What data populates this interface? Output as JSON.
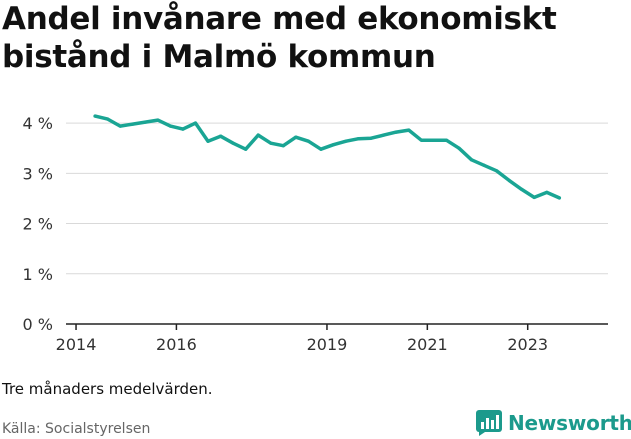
{
  "title": "Andel invånare med ekonomiskt bistånd i Malmö kommun",
  "note": "Tre månaders medelvärden.",
  "source": "Källa: Socialstyrelsen",
  "brand": "Newsworthy",
  "colors": {
    "line": "#1aa594",
    "grid": "#d9d9d9",
    "axis": "#222222",
    "brand": "#1c9a8c"
  },
  "chart_data": {
    "type": "line",
    "title": "Andel invånare med ekonomiskt bistånd i Malmö kommun",
    "xlabel": "",
    "ylabel": "",
    "xlim": [
      2013.8,
      2024.6
    ],
    "ylim": [
      0,
      4.4
    ],
    "grid": true,
    "y_ticks": [
      {
        "value": 0,
        "label": "0 %"
      },
      {
        "value": 1,
        "label": "1 %"
      },
      {
        "value": 2,
        "label": "2 %"
      },
      {
        "value": 3,
        "label": "3 %"
      },
      {
        "value": 4,
        "label": "4 %"
      }
    ],
    "x_ticks": [
      {
        "value": 2014,
        "label": "2014"
      },
      {
        "value": 2016,
        "label": "2016"
      },
      {
        "value": 2019,
        "label": "2019"
      },
      {
        "value": 2021,
        "label": "2021"
      },
      {
        "value": 2023,
        "label": "2023"
      }
    ],
    "series": [
      {
        "x": [
          2014.38,
          2014.63,
          2014.88,
          2015.13,
          2015.38,
          2015.63,
          2015.88,
          2016.13,
          2016.38,
          2016.63,
          2016.88,
          2017.13,
          2017.38,
          2017.63,
          2017.88,
          2018.13,
          2018.38,
          2018.63,
          2018.88,
          2019.13,
          2019.38,
          2019.63,
          2019.88,
          2020.13,
          2020.38,
          2020.63,
          2020.88,
          2021.13,
          2021.38,
          2021.63,
          2021.88,
          2022.13,
          2022.38,
          2022.63,
          2022.88,
          2023.13,
          2023.38,
          2023.63
        ],
        "values": [
          4.14,
          4.08,
          3.94,
          3.98,
          4.02,
          4.06,
          3.94,
          3.88,
          4.0,
          3.64,
          3.74,
          3.6,
          3.48,
          3.76,
          3.6,
          3.55,
          3.72,
          3.64,
          3.48,
          3.57,
          3.64,
          3.69,
          3.7,
          3.76,
          3.82,
          3.86,
          3.66,
          3.66,
          3.66,
          3.5,
          3.27,
          3.16,
          3.05,
          2.86,
          2.68,
          2.52,
          2.62,
          2.51
        ]
      }
    ]
  }
}
